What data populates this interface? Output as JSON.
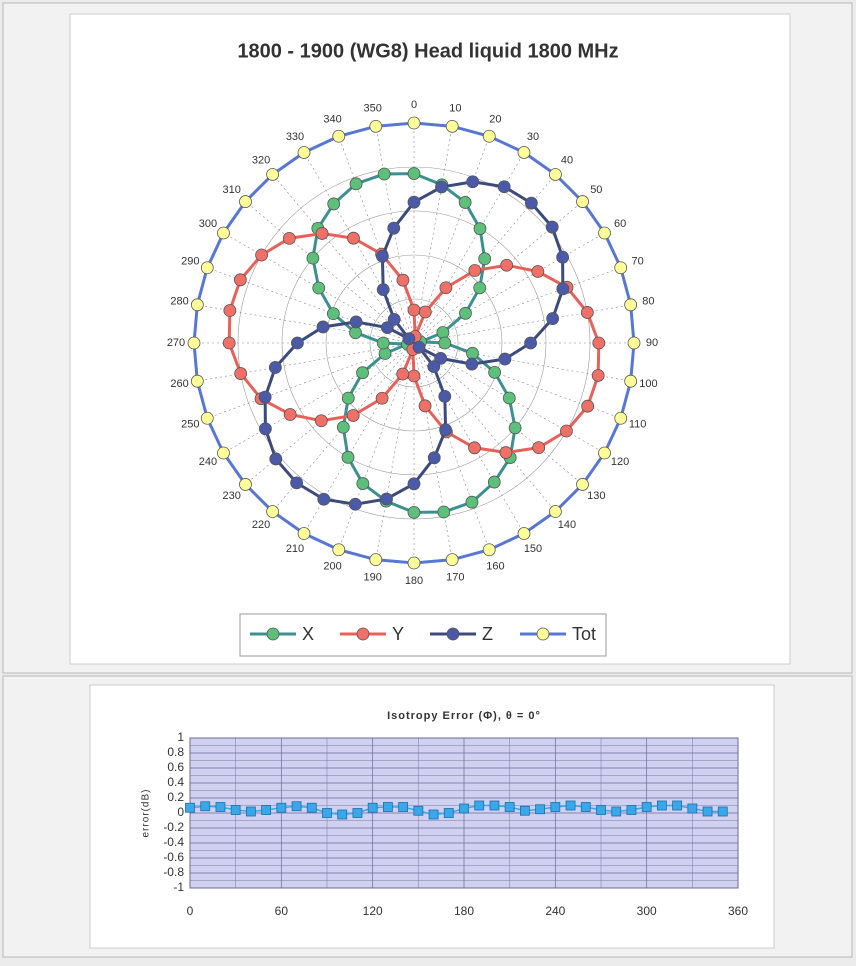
{
  "chart_data": [
    {
      "type": "radar",
      "title": "1800 - 1900 (WG8) Head liquid 1800 MHz",
      "categories": [
        0,
        10,
        20,
        30,
        40,
        50,
        60,
        70,
        80,
        90,
        100,
        110,
        120,
        130,
        140,
        150,
        160,
        170,
        180,
        190,
        200,
        210,
        220,
        230,
        240,
        250,
        260,
        270,
        280,
        290,
        300,
        310,
        320,
        330,
        340,
        350
      ],
      "rlim": [
        0,
        1
      ],
      "rticks": [
        0.2,
        0.4,
        0.6,
        0.8,
        1
      ],
      "series": [
        {
          "name": "X",
          "color": "#3d9090",
          "marker_color": "#5cc07a",
          "values": [
            0.77,
            0.73,
            0.68,
            0.6,
            0.5,
            0.39,
            0.27,
            0.14,
            0.03,
            0.14,
            0.27,
            0.39,
            0.5,
            0.6,
            0.68,
            0.73,
            0.77,
            0.78,
            0.77,
            0.73,
            0.68,
            0.6,
            0.5,
            0.39,
            0.27,
            0.14,
            0.03,
            0.14,
            0.27,
            0.39,
            0.5,
            0.6,
            0.68,
            0.73,
            0.77,
            0.78
          ]
        },
        {
          "name": "Y",
          "color": "#e8605a",
          "marker_color": "#f07068",
          "values": [
            0.15,
            0.03,
            0.15,
            0.29,
            0.43,
            0.55,
            0.65,
            0.74,
            0.8,
            0.84,
            0.85,
            0.84,
            0.8,
            0.74,
            0.65,
            0.55,
            0.43,
            0.29,
            0.15,
            0.03,
            0.15,
            0.29,
            0.43,
            0.55,
            0.65,
            0.74,
            0.8,
            0.84,
            0.85,
            0.84,
            0.8,
            0.74,
            0.65,
            0.55,
            0.43,
            0.29
          ]
        },
        {
          "name": "Z",
          "color": "#3c4a7c",
          "marker_color": "#4a5aa8",
          "values": [
            0.64,
            0.72,
            0.78,
            0.82,
            0.83,
            0.82,
            0.78,
            0.72,
            0.64,
            0.53,
            0.42,
            0.28,
            0.14,
            0.03,
            0.14,
            0.28,
            0.42,
            0.53,
            0.64,
            0.72,
            0.78,
            0.82,
            0.83,
            0.82,
            0.78,
            0.72,
            0.64,
            0.53,
            0.42,
            0.28,
            0.14,
            0.03,
            0.14,
            0.28,
            0.42,
            0.53
          ]
        },
        {
          "name": "Tot",
          "color": "#5877d4",
          "marker_color": "#ffff99",
          "values": [
            1,
            1,
            1,
            1,
            1,
            1,
            1,
            1,
            1,
            1,
            1,
            1,
            1,
            1,
            1,
            1,
            1,
            1,
            1,
            1,
            1,
            1,
            1,
            1,
            1,
            1,
            1,
            1,
            1,
            1,
            1,
            1,
            1,
            1,
            1,
            1
          ]
        }
      ]
    },
    {
      "type": "line",
      "title": "Isotropy Error (Φ), θ = 0°",
      "y_label": "error(dB)",
      "x": [
        0,
        10,
        20,
        30,
        40,
        50,
        60,
        70,
        80,
        90,
        100,
        110,
        120,
        130,
        140,
        150,
        160,
        170,
        180,
        190,
        200,
        210,
        220,
        230,
        240,
        250,
        260,
        270,
        280,
        290,
        300,
        310,
        320,
        330,
        340,
        350
      ],
      "values": [
        0.07,
        0.09,
        0.08,
        0.04,
        0.02,
        0.04,
        0.07,
        0.09,
        0.07,
        0.0,
        -0.02,
        0.0,
        0.07,
        0.08,
        0.08,
        0.03,
        -0.02,
        0.0,
        0.06,
        0.1,
        0.1,
        0.08,
        0.03,
        0.05,
        0.08,
        0.1,
        0.08,
        0.04,
        0.02,
        0.04,
        0.08,
        0.1,
        0.1,
        0.06,
        0.02,
        0.02
      ],
      "color": "#3aa8e8",
      "xlim": [
        0,
        360
      ],
      "xticks": [
        0,
        60,
        120,
        180,
        240,
        300,
        360
      ],
      "ylim": [
        -1,
        1
      ],
      "yticks": [
        1,
        0.8,
        0.6,
        0.4,
        0.2,
        0,
        -0.2,
        -0.4,
        -0.6,
        -0.8,
        -1
      ],
      "grid": true
    }
  ]
}
